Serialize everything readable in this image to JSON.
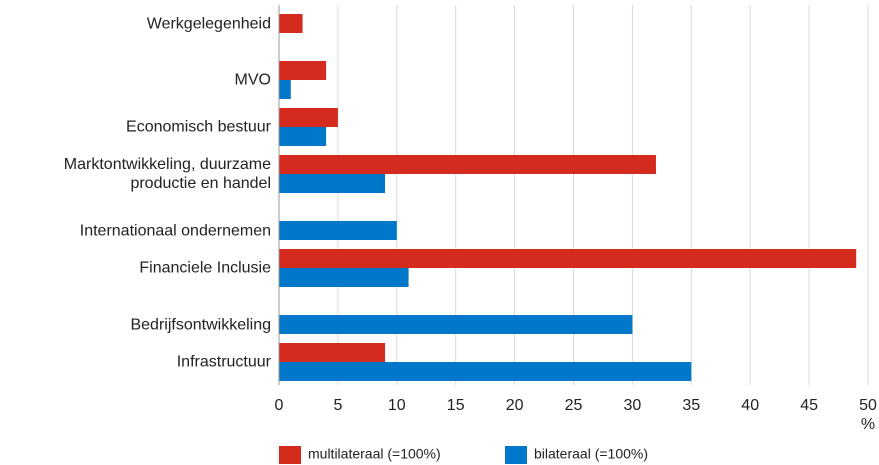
{
  "chart_data": {
    "type": "bar",
    "orientation": "horizontal",
    "categories": [
      "Werkgelegenheid",
      "MVO",
      "Economisch bestuur",
      "Marktontwikkeling, duurzame productie en handel",
      "Internationaal ondernemen",
      "Financiele Inclusie",
      "Bedrijfsontwikkeling",
      "Infrastructuur"
    ],
    "series": [
      {
        "name": "multilateraal (=100%)",
        "color": "#d52b1e",
        "values": [
          2,
          4,
          5,
          32,
          null,
          49,
          null,
          9
        ]
      },
      {
        "name": "bilateraal (=100%)",
        "color": "#0077c8",
        "values": [
          null,
          1,
          4,
          9,
          10,
          11,
          30,
          35
        ]
      }
    ],
    "xlim": [
      0,
      50
    ],
    "xticks": [
      0,
      5,
      10,
      15,
      20,
      25,
      30,
      35,
      40,
      45,
      50
    ],
    "x_unit": "%",
    "grid": true
  }
}
